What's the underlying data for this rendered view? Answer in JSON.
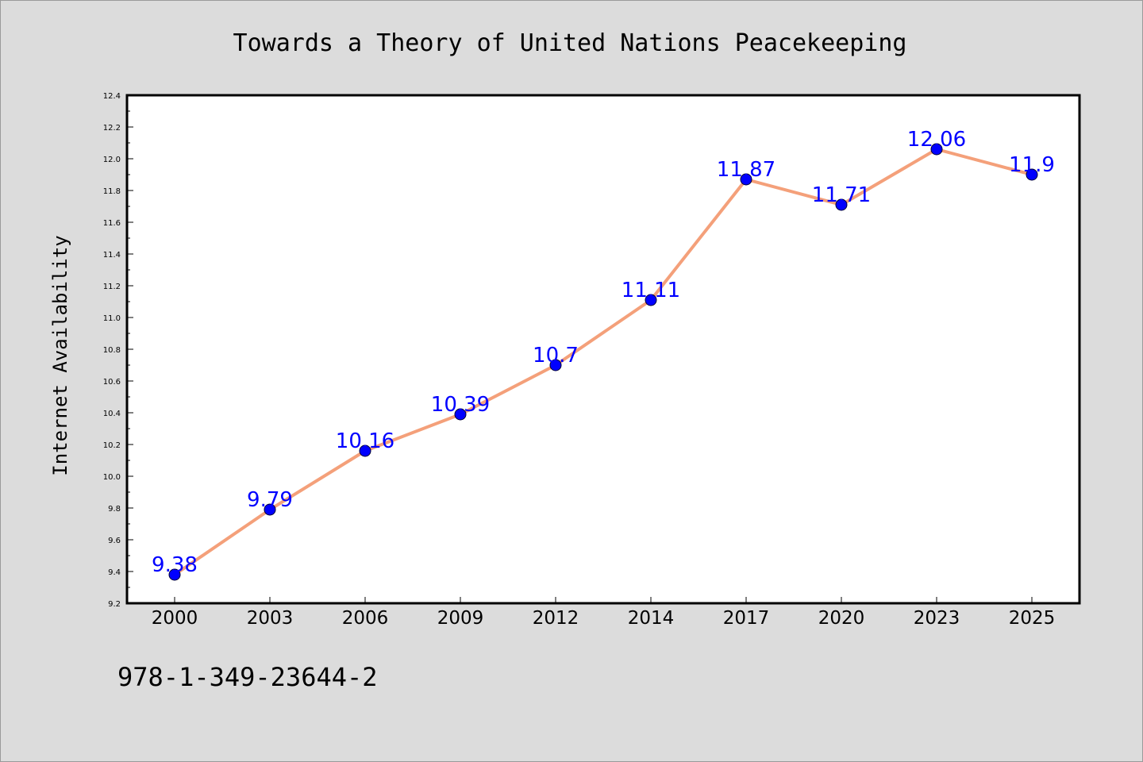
{
  "chart_data": {
    "type": "line",
    "title": "Towards a Theory of United Nations Peacekeeping",
    "xlabel": "",
    "ylabel": "Internet Availability",
    "categories": [
      "2000",
      "2003",
      "2006",
      "2009",
      "2012",
      "2014",
      "2017",
      "2020",
      "2023",
      "2025"
    ],
    "series": [
      {
        "values": [
          9.38,
          9.79,
          10.16,
          10.39,
          10.7,
          11.11,
          11.87,
          11.71,
          12.06,
          11.9
        ],
        "data_labels": [
          "9.38",
          "9.79",
          "10.16",
          "10.39",
          "10.7",
          "11.11",
          "11.87",
          "11.71",
          "12.06",
          "11.9"
        ],
        "line_color": "#f4a07a",
        "marker_color": "#0000ff"
      }
    ],
    "ylim": [
      9.2,
      12.4
    ],
    "yticks": [
      "9.2",
      "9.4",
      "9.6",
      "9.8",
      "10.0",
      "10.2",
      "10.4",
      "10.6",
      "10.8",
      "11.0",
      "11.2",
      "11.4",
      "11.6",
      "11.8",
      "12.0",
      "12.2",
      "12.4"
    ],
    "grid": false,
    "legend": "none",
    "label_color": "#0000ff",
    "background": "#dcdcdc",
    "plot_background": "#ffffff"
  },
  "footnote": "978-1-349-23644-2"
}
